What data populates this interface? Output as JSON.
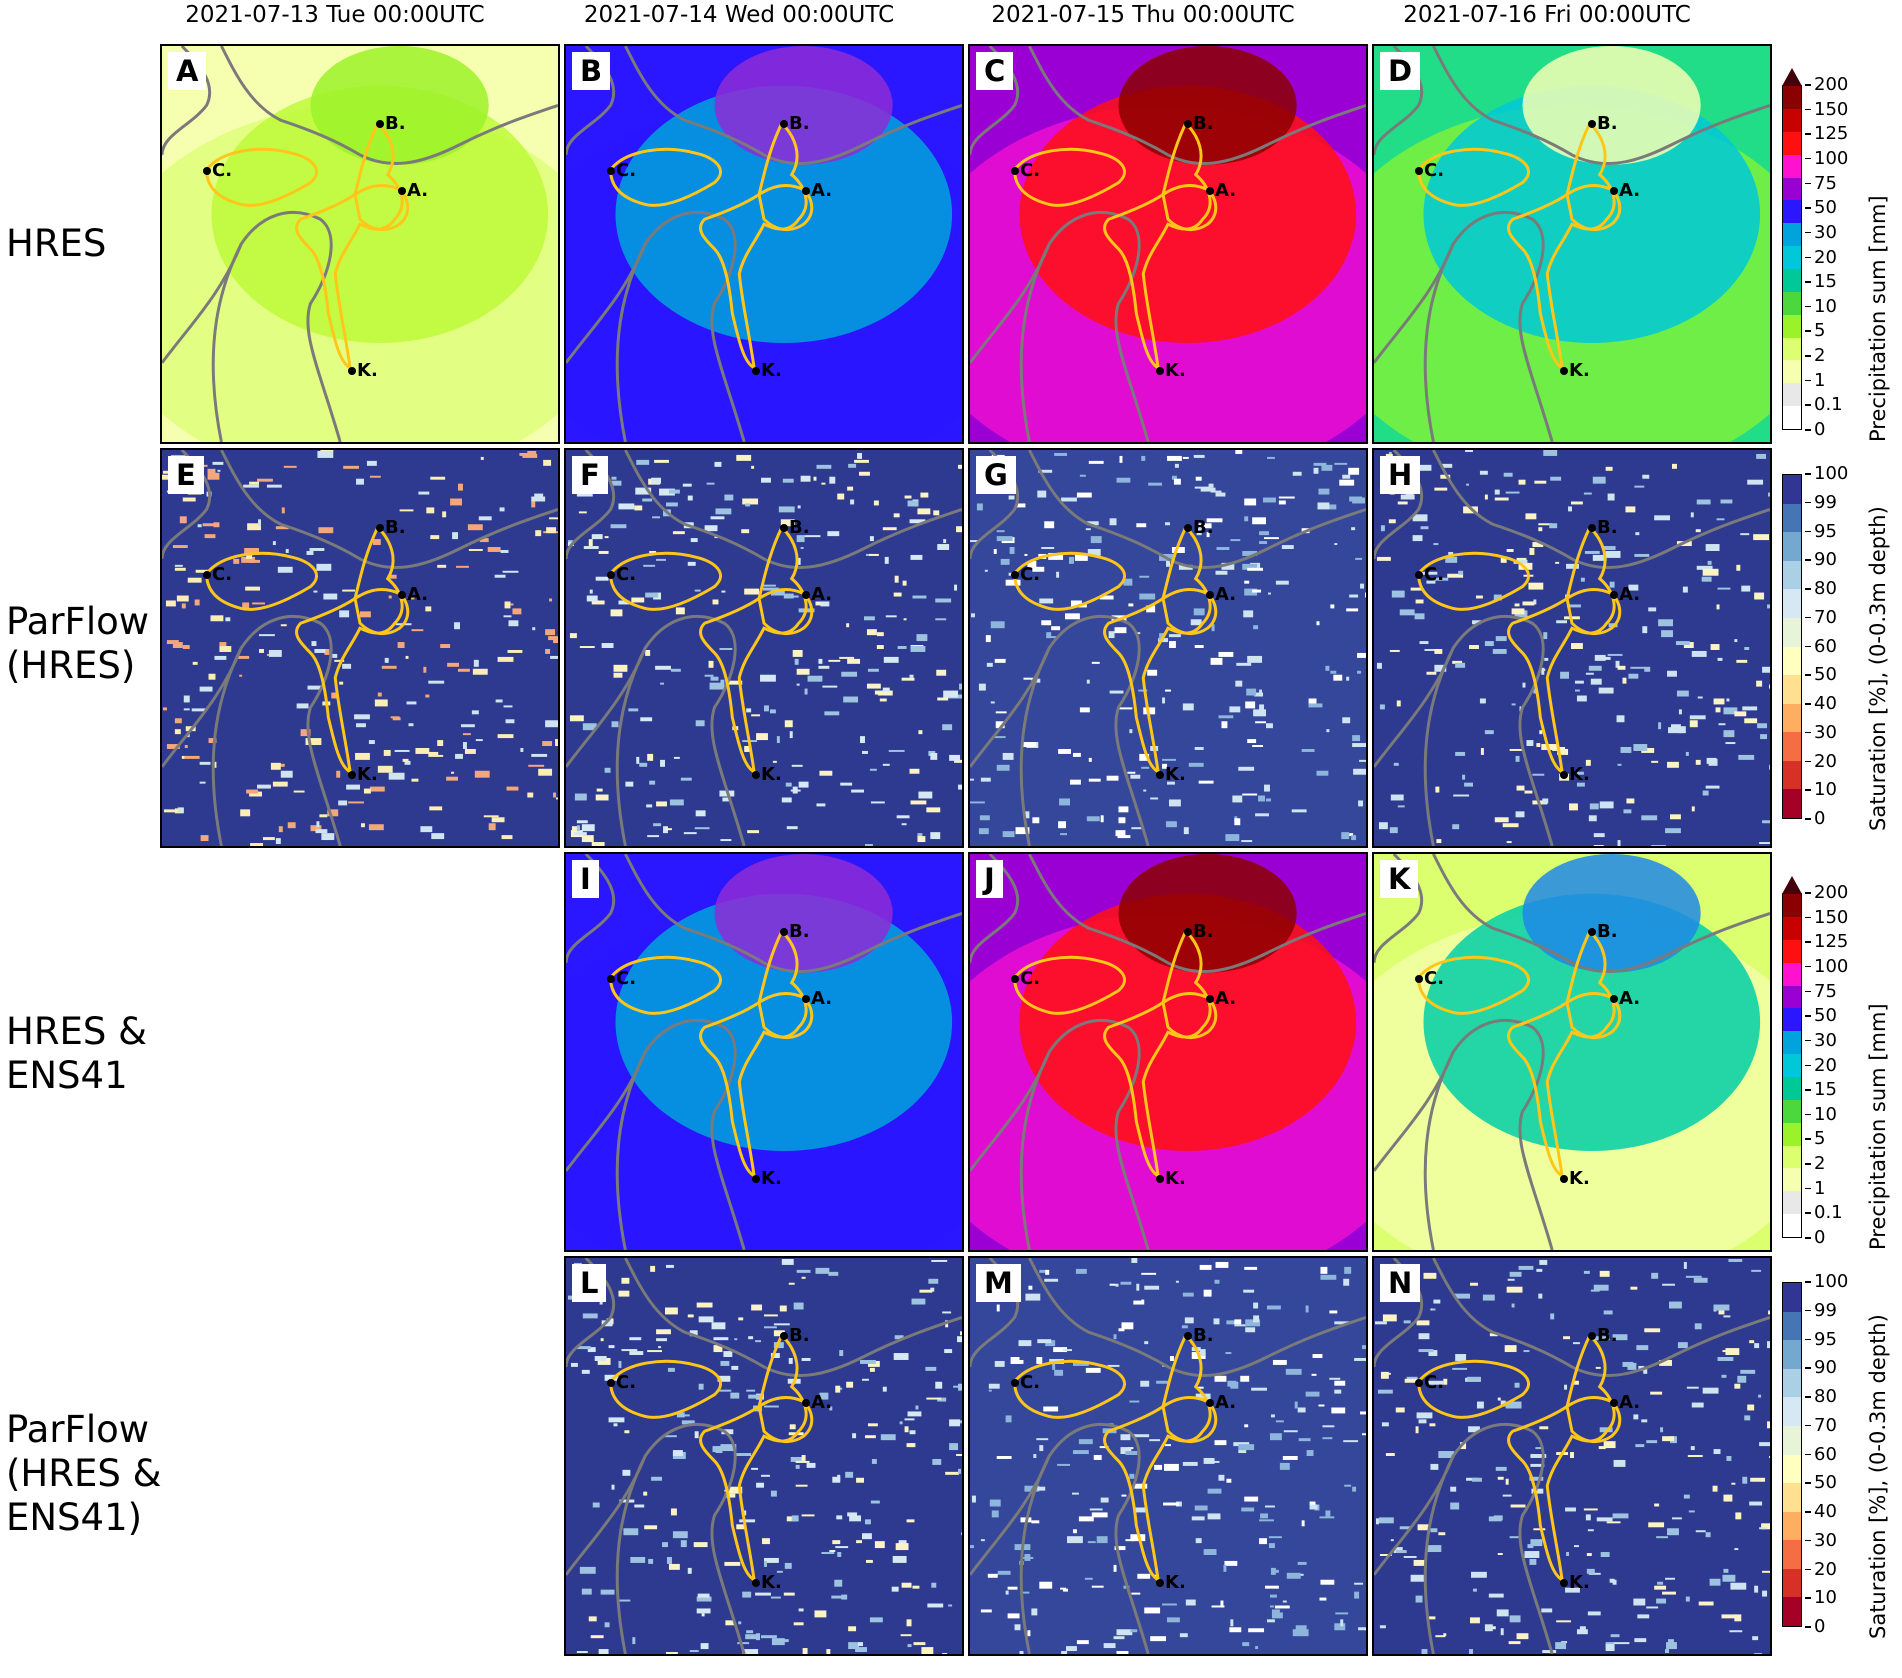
{
  "columns": [
    "2021-07-13 Tue 00:00UTC",
    "2021-07-14 Wed 00:00UTC",
    "2021-07-15 Thu 00:00UTC",
    "2021-07-16 Fri 00:00UTC"
  ],
  "rows": [
    "HRES",
    "ParFlow\n(HRES)",
    "HRES &\nENS41",
    "ParFlow\n(HRES &\nENS41)"
  ],
  "panels": {
    "A": {
      "letter": "A",
      "kind": "precip",
      "palette": [
        "#f6ffb0",
        "#dcff70",
        "#bdf93a",
        "#9cf229"
      ]
    },
    "B": {
      "letter": "B",
      "kind": "precip",
      "palette": [
        "#2a16ff",
        "#2a16ff",
        "#00a3dc",
        "#8f2bd6"
      ]
    },
    "C": {
      "letter": "C",
      "kind": "precip",
      "palette": [
        "#9a00d4",
        "#ff11d0",
        "#ff1010",
        "#8b0000"
      ]
    },
    "D": {
      "letter": "D",
      "kind": "precip",
      "palette": [
        "#22dd88",
        "#8ef52c",
        "#00c8d8",
        "#f4ffb4"
      ]
    },
    "E": {
      "letter": "E",
      "kind": "sat",
      "palette": [
        "#2d3a8f",
        "#fbeeb4",
        "#f4a77a",
        "#cfe4f0"
      ]
    },
    "F": {
      "letter": "F",
      "kind": "sat",
      "palette": [
        "#2d3a8f",
        "#fbf3c4",
        "#d6e8f3",
        "#9ec3e0"
      ]
    },
    "G": {
      "letter": "G",
      "kind": "sat",
      "palette": [
        "#34479a",
        "#cfe4f0",
        "#8eb6dc",
        "#ffffff"
      ]
    },
    "H": {
      "letter": "H",
      "kind": "sat",
      "palette": [
        "#2d3a8f",
        "#fbf3c4",
        "#cfe4f0",
        "#9ec3e0"
      ]
    },
    "I": {
      "letter": "I",
      "kind": "precip",
      "palette": [
        "#2a16ff",
        "#2a16ff",
        "#00a3dc",
        "#8f2bd6"
      ]
    },
    "J": {
      "letter": "J",
      "kind": "precip",
      "palette": [
        "#9a00d4",
        "#ff11d0",
        "#ff1010",
        "#8b0000"
      ]
    },
    "K": {
      "letter": "K",
      "kind": "precip",
      "palette": [
        "#dcff70",
        "#f6ffb0",
        "#00cfa8",
        "#1e88e8"
      ]
    },
    "L": {
      "letter": "L",
      "kind": "sat",
      "palette": [
        "#2d3a8f",
        "#fbf3c4",
        "#d6e8f3",
        "#9ec3e0"
      ]
    },
    "M": {
      "letter": "M",
      "kind": "sat",
      "palette": [
        "#34479a",
        "#cfe4f0",
        "#8eb6dc",
        "#ffffff"
      ]
    },
    "N": {
      "letter": "N",
      "kind": "sat",
      "palette": [
        "#2d3a8f",
        "#fbf3c4",
        "#cfe4f0",
        "#9ec3e0"
      ]
    }
  },
  "cities": [
    "B.",
    "C.",
    "A.",
    "K."
  ],
  "precip_colorbar": {
    "label": "Precipitation sum [mm]",
    "ticks": [
      "0",
      "0.1",
      "1",
      "2",
      "5",
      "10",
      "15",
      "20",
      "30",
      "50",
      "75",
      "100",
      "125",
      "150",
      "200"
    ],
    "colors": [
      "#ffffff",
      "#e8e8e8",
      "#f6ffb0",
      "#dcff70",
      "#9cf229",
      "#4cd83c",
      "#00c896",
      "#00c8d8",
      "#00a3dc",
      "#2a16ff",
      "#9a00d4",
      "#ff11d0",
      "#ff1010",
      "#c80000",
      "#8b0000",
      "#42000a"
    ]
  },
  "sat_colorbar": {
    "label": "Saturation [%], (0-0.3m depth)",
    "ticks": [
      "0",
      "10",
      "20",
      "30",
      "40",
      "50",
      "60",
      "70",
      "80",
      "90",
      "95",
      "99",
      "100"
    ],
    "colors": [
      "#a50026",
      "#d73027",
      "#f46d43",
      "#fdae61",
      "#fee090",
      "#ffffbf",
      "#e8f4d8",
      "#d6e8f3",
      "#abd0e6",
      "#74a9cf",
      "#4575b4",
      "#313695"
    ]
  }
}
